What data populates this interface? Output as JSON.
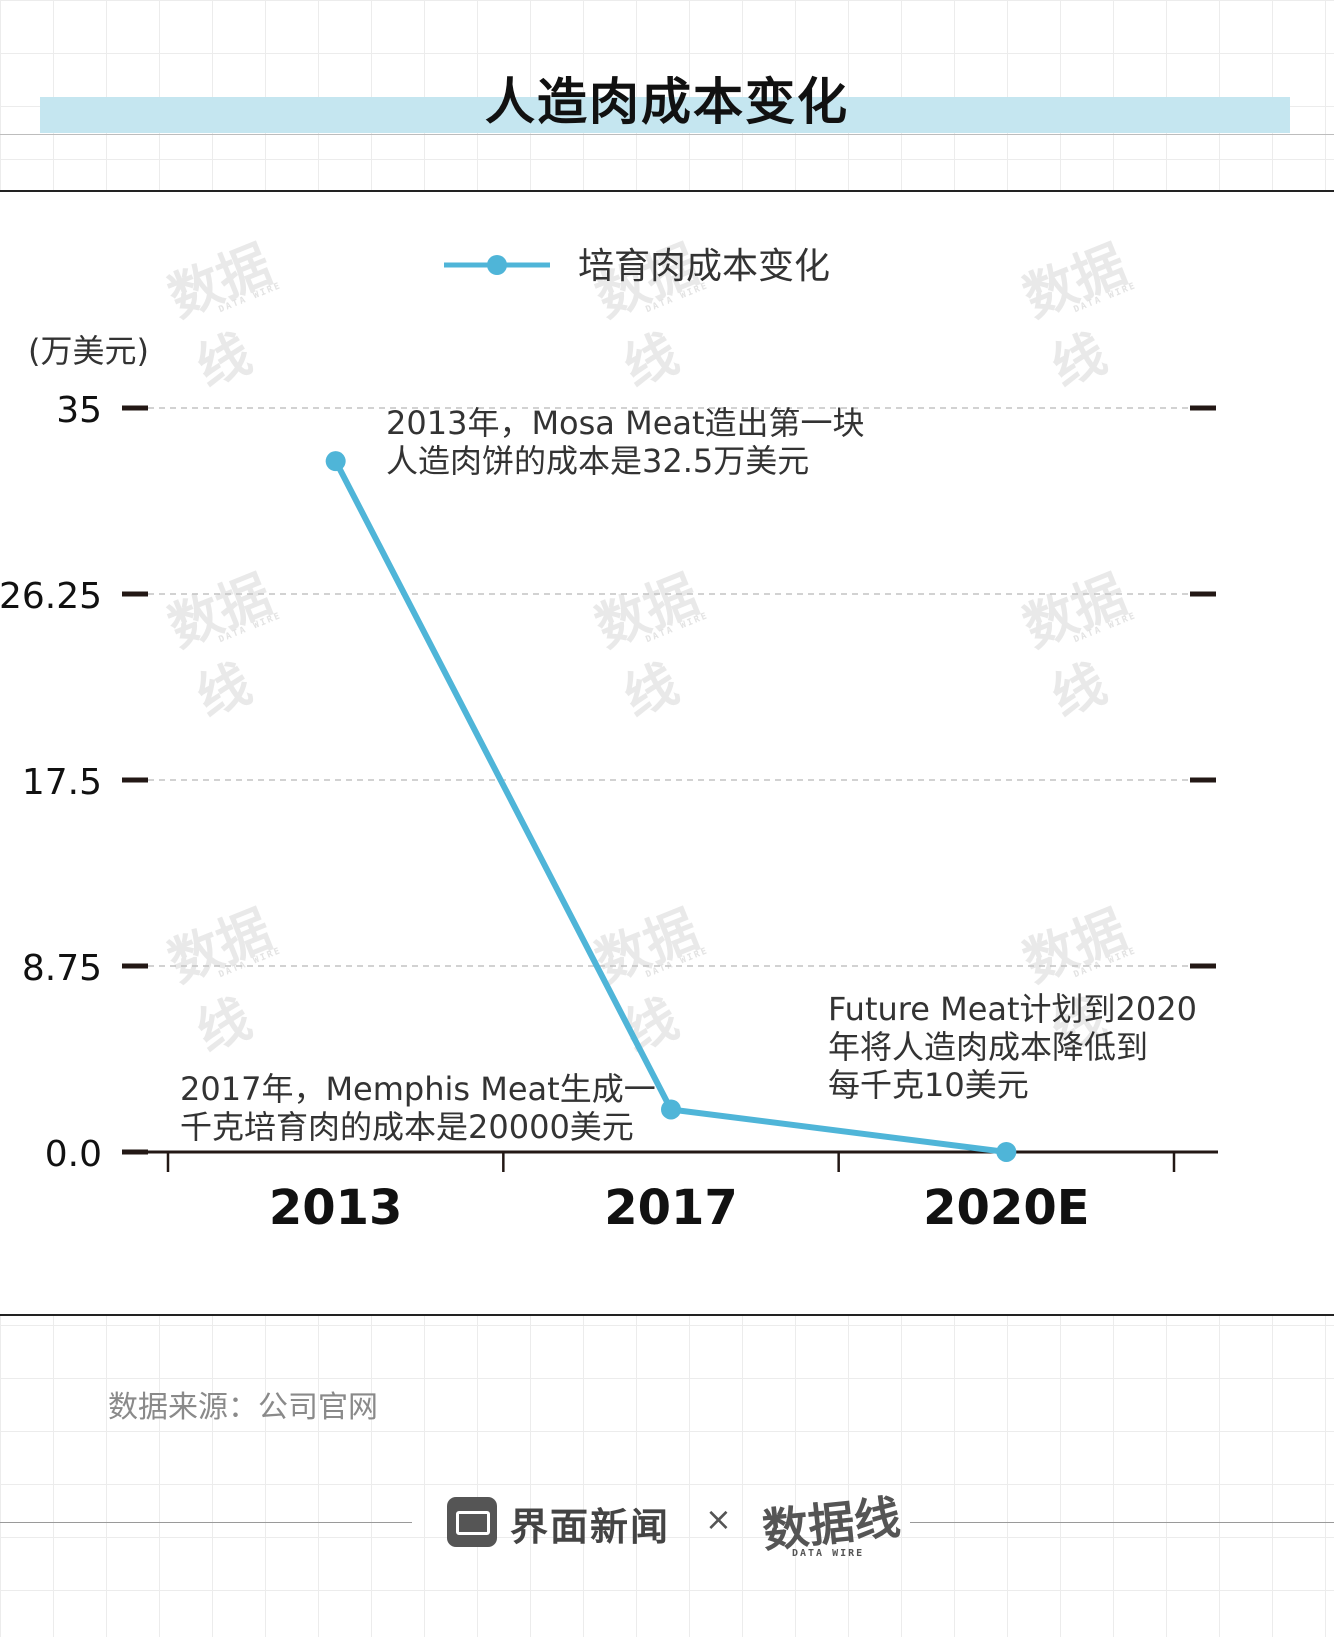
{
  "title": "人造肉成本变化",
  "source": "数据来源：公司官网",
  "footer": {
    "brand": "界面新闻",
    "separator": "×",
    "partner": "数据线",
    "partner_sub": "DATA WIRE"
  },
  "watermark": {
    "text": "数据线",
    "sub": "DATA WIRE"
  },
  "colors": {
    "line": "#4fb5d8",
    "title_band": "#c5e6f0",
    "tick": "#231815",
    "text": "#111111"
  },
  "chart_data": {
    "type": "line",
    "unit": "(万美元)",
    "categories": [
      "2013",
      "2017",
      "2020E"
    ],
    "series": [
      {
        "name": "培育肉成本变化",
        "values": [
          32.5,
          2,
          0.001
        ]
      }
    ],
    "y_ticks": [
      "35",
      "26.25",
      "17.5",
      "8.75",
      "0.0"
    ],
    "ylim": [
      0,
      35
    ],
    "grid": true,
    "legend_position": "top-center",
    "annotations": [
      {
        "category": "2013",
        "lines": [
          "2013年，Mosa   Meat造出第一块",
          "人造肉饼的成本是32.5万美元"
        ]
      },
      {
        "category": "2017",
        "lines": [
          "2017年，Memphis Meat生成一",
          "千克培育肉的成本是20000美元"
        ]
      },
      {
        "category": "2020E",
        "lines": [
          "Future Meat计划到2020",
          "年将人造肉成本降低到",
          "每千克10美元"
        ]
      }
    ]
  }
}
